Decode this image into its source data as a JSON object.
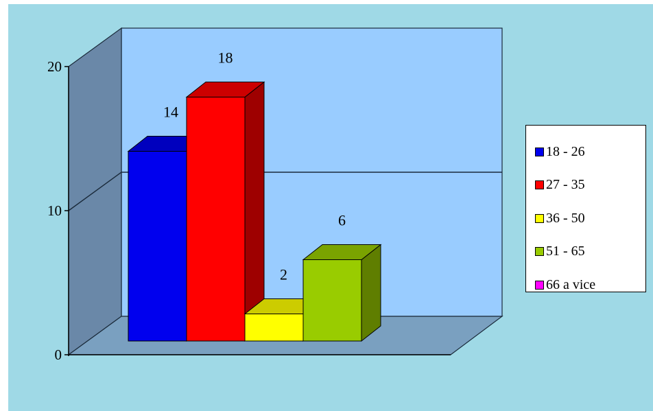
{
  "colors": {
    "background": "#9fd9e6",
    "plot_wall": "#99ccff",
    "side_wall": "#6a88a8",
    "floor": "#7aa0c0"
  },
  "chart_data": {
    "type": "bar",
    "title": "",
    "xlabel": "",
    "ylabel": "",
    "ylim": [
      0,
      20
    ],
    "yticks": [
      0,
      10,
      20
    ],
    "grid": "horizontal gridline at 10",
    "legend_position": "right",
    "three_d": true,
    "series": [
      {
        "name": "18 - 26",
        "value": 14,
        "label": "14",
        "color": "#0000ee"
      },
      {
        "name": "27 - 35",
        "value": 18,
        "label": "18",
        "color": "#ff0000"
      },
      {
        "name": "36 - 50",
        "value": 2,
        "label": "2",
        "color": "#ffff00"
      },
      {
        "name": "51 - 65",
        "value": 6,
        "label": "6",
        "color": "#99cc00"
      },
      {
        "name": "66 a vice",
        "value": 0,
        "label": "",
        "color": "#ff00ff"
      }
    ]
  }
}
